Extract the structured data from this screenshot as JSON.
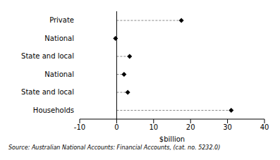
{
  "chart_data": {
    "type": "dot",
    "orientation": "horizontal",
    "categories": [
      "Private",
      "National",
      "State and local",
      "National",
      "State and local",
      "Households"
    ],
    "values": [
      17.5,
      -0.3,
      3.5,
      2,
      3,
      31
    ],
    "color": "#000000",
    "marker": "diamond",
    "line_style": "dashed",
    "xlabel": "$billion",
    "xlim": [
      -10,
      40
    ],
    "xticks": [
      -10,
      0,
      10,
      20,
      30,
      40
    ],
    "grid": false,
    "source": "Source: Australian National Accounts: Financial Accounts, (cat. no. 5232.0)"
  }
}
